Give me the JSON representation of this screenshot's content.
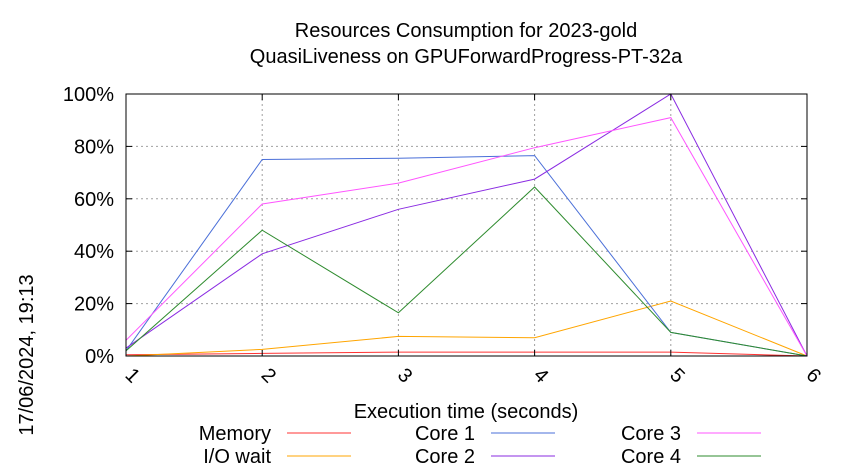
{
  "chart_data": {
    "type": "line",
    "title_line1": "Resources Consumption for 2023-gold",
    "title_line2": "QuasiLiveness on GPUForwardProgress-PT-32a",
    "xlabel": "Execution time (seconds)",
    "ylabel": "",
    "side_label": "17/06/2024, 19:13",
    "x": [
      1,
      2,
      3,
      4,
      5,
      6
    ],
    "xlim": [
      1,
      6
    ],
    "ylim": [
      0,
      100
    ],
    "y_ticks": [
      "0%",
      "20%",
      "40%",
      "60%",
      "80%",
      "100%"
    ],
    "x_ticks": [
      "1",
      "2",
      "3",
      "4",
      "5",
      "6"
    ],
    "grid": true,
    "legend_placement": "bottom",
    "series": [
      {
        "name": "Memory",
        "color": "#ff3333",
        "values": [
          0.5,
          1,
          1.5,
          1.5,
          1.5,
          0
        ]
      },
      {
        "name": "I/O wait",
        "color": "#ffa500",
        "values": [
          0,
          2.5,
          7.5,
          7,
          21,
          0
        ]
      },
      {
        "name": "Core 1",
        "color": "#4a6fd8",
        "values": [
          2,
          75,
          75.5,
          76.5,
          9,
          0
        ]
      },
      {
        "name": "Core 2",
        "color": "#8a2be2",
        "values": [
          3,
          39,
          56,
          67.5,
          100,
          0
        ]
      },
      {
        "name": "Core 3",
        "color": "#ff55ff",
        "values": [
          6,
          58,
          66,
          79.5,
          91,
          0
        ]
      },
      {
        "name": "Core 4",
        "color": "#2e8b2e",
        "values": [
          2,
          48,
          16.5,
          64.5,
          9,
          0
        ]
      }
    ]
  }
}
